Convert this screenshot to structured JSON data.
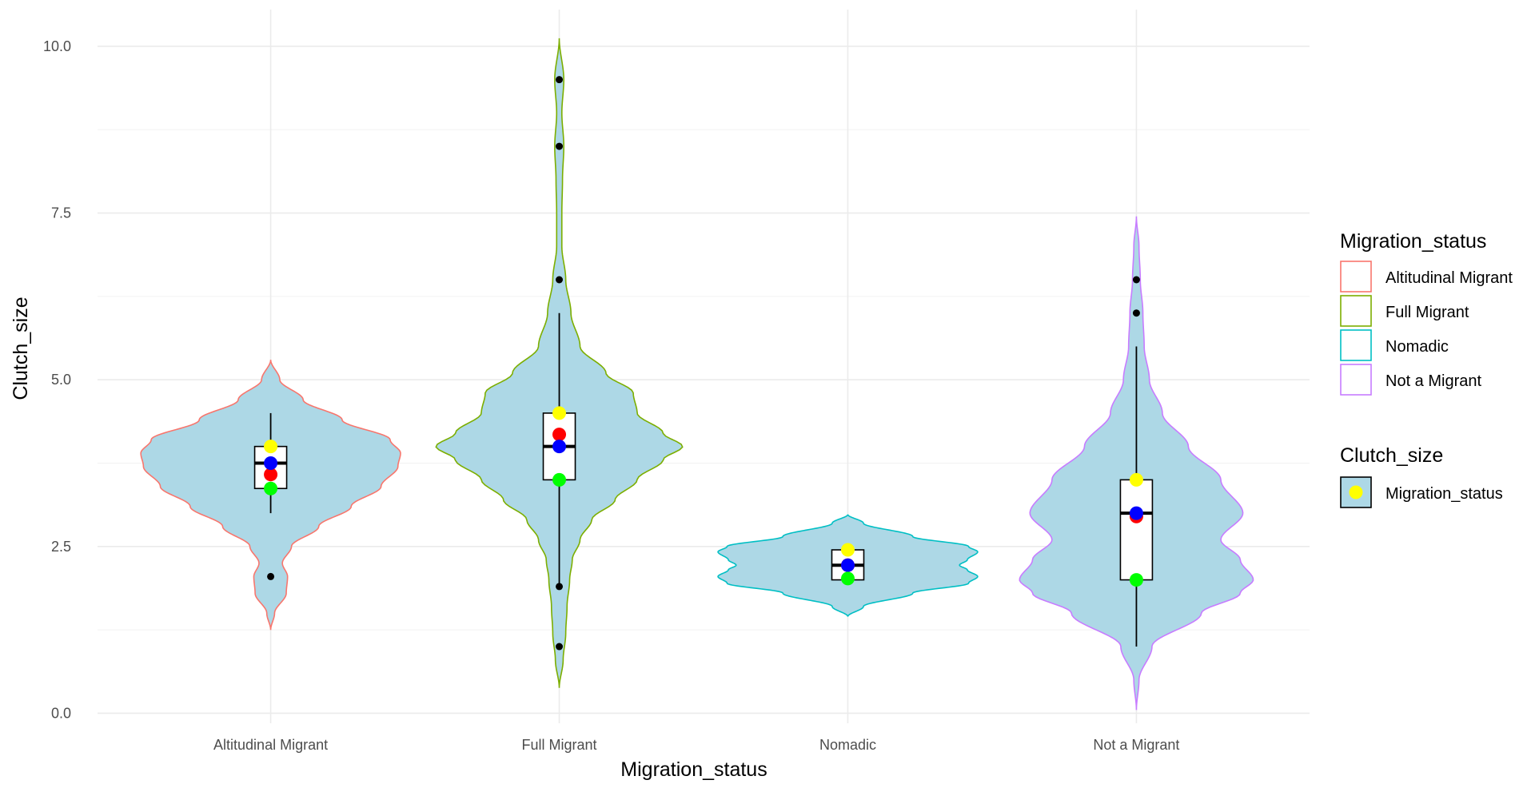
{
  "chart_data": {
    "type": "violin",
    "title": "",
    "xlabel": "Migration_status",
    "ylabel": "Clutch_size",
    "ylim": [
      -0.15,
      10.55
    ],
    "yticks": [
      0,
      2.5,
      5,
      7.5,
      10
    ],
    "ytick_labels": [
      "0.0",
      "2.5",
      "5.0",
      "7.5",
      "10.0"
    ],
    "grid": true,
    "fill_color": "#ADD8E6",
    "categories": [
      "Altitudinal Migrant",
      "Full Migrant",
      "Nomadic",
      "Not a Migrant"
    ],
    "series": [
      {
        "name": "Altitudinal Migrant",
        "outline_color": "#F8766D",
        "violin_range": [
          1.25,
          5.3
        ],
        "box": {
          "whisker_low": 3.0,
          "q1": 3.37,
          "median": 3.75,
          "q3": 4.0,
          "whisker_high": 4.5
        },
        "outliers": [
          2.05
        ],
        "mean": 3.58,
        "median_point": 3.75,
        "min_point": 3.37,
        "max_point": 4.0,
        "density_profile": [
          [
            1.25,
            0
          ],
          [
            1.5,
            0.03
          ],
          [
            1.8,
            0.12
          ],
          [
            2.05,
            0.13
          ],
          [
            2.25,
            0.09
          ],
          [
            2.5,
            0.16
          ],
          [
            2.8,
            0.37
          ],
          [
            3.1,
            0.62
          ],
          [
            3.4,
            0.85
          ],
          [
            3.7,
            0.98
          ],
          [
            3.9,
            1.0
          ],
          [
            4.1,
            0.92
          ],
          [
            4.4,
            0.55
          ],
          [
            4.7,
            0.25
          ],
          [
            5.0,
            0.07
          ],
          [
            5.3,
            0
          ]
        ]
      },
      {
        "name": "Full Migrant",
        "outline_color": "#7CAE00",
        "violin_range": [
          0.38,
          10.12
        ],
        "box": {
          "whisker_low": 1.9,
          "q1": 3.5,
          "median": 4.0,
          "q3": 4.5,
          "whisker_high": 6.0
        },
        "outliers": [
          1.0,
          1.9,
          6.5,
          8.5,
          9.5
        ],
        "mean": 4.18,
        "median_point": 4.0,
        "min_point": 3.5,
        "max_point": 4.5,
        "density_profile": [
          [
            0.38,
            0
          ],
          [
            0.8,
            0.03
          ],
          [
            1.2,
            0.05
          ],
          [
            1.6,
            0.06
          ],
          [
            2.0,
            0.08
          ],
          [
            2.3,
            0.1
          ],
          [
            2.6,
            0.16
          ],
          [
            2.9,
            0.25
          ],
          [
            3.2,
            0.43
          ],
          [
            3.5,
            0.6
          ],
          [
            3.8,
            0.8
          ],
          [
            4.0,
            0.95
          ],
          [
            4.2,
            0.8
          ],
          [
            4.5,
            0.6
          ],
          [
            4.8,
            0.57
          ],
          [
            5.1,
            0.36
          ],
          [
            5.5,
            0.16
          ],
          [
            6.0,
            0.09
          ],
          [
            6.5,
            0.05
          ],
          [
            7.0,
            0.02
          ],
          [
            7.5,
            0.02
          ],
          [
            8.0,
            0.025
          ],
          [
            8.5,
            0.035
          ],
          [
            9.0,
            0.02
          ],
          [
            9.5,
            0.035
          ],
          [
            10.12,
            0
          ]
        ]
      },
      {
        "name": "Nomadic",
        "outline_color": "#00BFC4",
        "violin_range": [
          1.45,
          2.98
        ],
        "box": {
          "whisker_low": 2.0,
          "q1": 2.0,
          "median": 2.22,
          "q3": 2.45,
          "whisker_high": 2.45
        },
        "outliers": [],
        "mean": 2.22,
        "median_point": 2.22,
        "min_point": 2.02,
        "max_point": 2.45,
        "density_profile": [
          [
            1.45,
            0
          ],
          [
            1.6,
            0.12
          ],
          [
            1.8,
            0.5
          ],
          [
            1.95,
            0.93
          ],
          [
            2.05,
            1.0
          ],
          [
            2.15,
            0.92
          ],
          [
            2.22,
            0.86
          ],
          [
            2.3,
            0.92
          ],
          [
            2.42,
            1.0
          ],
          [
            2.5,
            0.93
          ],
          [
            2.65,
            0.5
          ],
          [
            2.85,
            0.12
          ],
          [
            2.98,
            0
          ]
        ]
      },
      {
        "name": "Not a Migrant",
        "outline_color": "#C77CFF",
        "violin_range": [
          0.05,
          7.45
        ],
        "box": {
          "whisker_low": 1.0,
          "q1": 2.0,
          "median": 3.0,
          "q3": 3.5,
          "whisker_high": 5.5
        },
        "outliers": [
          6.0,
          6.5
        ],
        "mean": 2.95,
        "median_point": 3.0,
        "min_point": 2.0,
        "max_point": 3.5,
        "density_profile": [
          [
            0.05,
            0
          ],
          [
            0.5,
            0.02
          ],
          [
            1.0,
            0.12
          ],
          [
            1.5,
            0.5
          ],
          [
            1.8,
            0.8
          ],
          [
            2.0,
            0.9
          ],
          [
            2.3,
            0.8
          ],
          [
            2.6,
            0.65
          ],
          [
            3.0,
            0.82
          ],
          [
            3.5,
            0.65
          ],
          [
            4.0,
            0.4
          ],
          [
            4.5,
            0.2
          ],
          [
            5.0,
            0.1
          ],
          [
            5.5,
            0.06
          ],
          [
            6.0,
            0.05
          ],
          [
            6.5,
            0.03
          ],
          [
            7.0,
            0.02
          ],
          [
            7.45,
            0
          ]
        ]
      }
    ],
    "summary_point_colors": {
      "mean": "#FF0000",
      "median": "#0000FF",
      "min": "#00FF00",
      "max": "#FFFF00"
    },
    "legends": [
      {
        "title": "Migration_status",
        "placement": "right",
        "entries": [
          {
            "label": "Altitudinal Migrant",
            "color": "#F8766D"
          },
          {
            "label": "Full Migrant",
            "color": "#7CAE00"
          },
          {
            "label": "Nomadic",
            "color": "#00BFC4"
          },
          {
            "label": "Not a Migrant",
            "color": "#C77CFF"
          }
        ]
      },
      {
        "title": "Clutch_size",
        "placement": "right",
        "entries": [
          {
            "label": "Migration_status",
            "color": "#FFFF00"
          }
        ]
      }
    ]
  }
}
